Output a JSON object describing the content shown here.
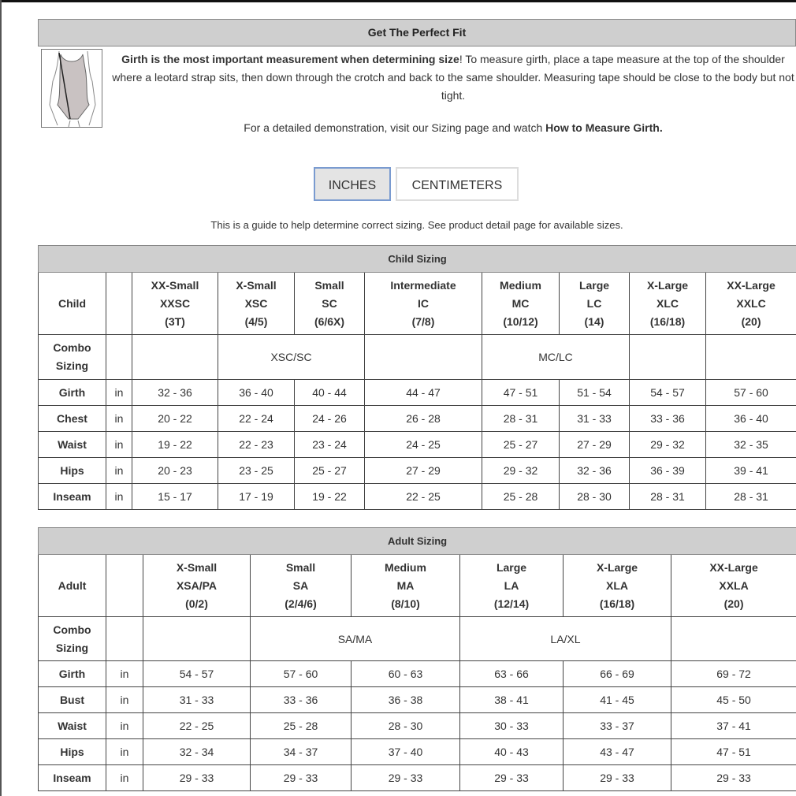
{
  "fit": {
    "title": "Get The Perfect Fit",
    "figure_icon": "leotard-girth-figure",
    "intro_bold": "Girth is the most important measurement when determining size",
    "intro_rest": "! To measure girth, place a tape measure at the top of the shoulder where a leotard strap sits, then down through the crotch and back to the same shoulder. Measuring tape should be close to the body but not tight.",
    "demo_text": "For a detailed demonstration, visit our Sizing page and watch ",
    "demo_link": "How to Measure Girth."
  },
  "units": {
    "inches": "INCHES",
    "centimeters": "CENTIMETERS",
    "selected": "inches",
    "active_border": "#7a9bd0"
  },
  "guide": "This is a guide to help determine correct sizing. See product detail page for available sizes.",
  "child": {
    "title": "Child Sizing",
    "corner": "Child",
    "sizes": [
      [
        "XX-Small",
        "XXSC",
        "(3T)"
      ],
      [
        "X-Small",
        "XSC",
        "(4/5)"
      ],
      [
        "Small",
        "SC",
        "(6/6X)"
      ],
      [
        "Intermediate",
        "IC",
        "(7/8)"
      ],
      [
        "Medium",
        "MC",
        "(10/12)"
      ],
      [
        "Large",
        "LC",
        "(14)"
      ],
      [
        "X-Large",
        "XLC",
        "(16/18)"
      ],
      [
        "XX-Large",
        "XXLC",
        "(20)"
      ]
    ],
    "combo_label": [
      "Combo",
      "Sizing"
    ],
    "combo": [
      {
        "text": "",
        "span": 1
      },
      {
        "text": "XSC/SC",
        "span": 2
      },
      {
        "text": "",
        "span": 1
      },
      {
        "text": "MC/LC",
        "span": 2
      },
      {
        "text": "",
        "span": 1
      },
      {
        "text": "",
        "span": 1
      }
    ],
    "unit": "in",
    "rows": [
      {
        "label": "Girth",
        "values": [
          "32 - 36",
          "36 - 40",
          "40 - 44",
          "44 - 47",
          "47 - 51",
          "51 - 54",
          "54 - 57",
          "57 - 60"
        ]
      },
      {
        "label": "Chest",
        "values": [
          "20 - 22",
          "22 - 24",
          "24 - 26",
          "26 - 28",
          "28 - 31",
          "31 - 33",
          "33 - 36",
          "36 - 40"
        ]
      },
      {
        "label": "Waist",
        "values": [
          "19 - 22",
          "22 - 23",
          "23 - 24",
          "24 - 25",
          "25 - 27",
          "27 - 29",
          "29 - 32",
          "32 - 35"
        ]
      },
      {
        "label": "Hips",
        "values": [
          "20 - 23",
          "23 - 25",
          "25 - 27",
          "27 - 29",
          "29 - 32",
          "32 - 36",
          "36 - 39",
          "39 - 41"
        ]
      },
      {
        "label": "Inseam",
        "values": [
          "15 - 17",
          "17 - 19",
          "19 - 22",
          "22 - 25",
          "25 - 28",
          "28 - 30",
          "28 - 31",
          "28 - 31"
        ]
      }
    ]
  },
  "adult": {
    "title": "Adult Sizing",
    "corner": "Adult",
    "sizes": [
      [
        "X-Small",
        "XSA/PA",
        "(0/2)"
      ],
      [
        "Small",
        "SA",
        "(2/4/6)"
      ],
      [
        "Medium",
        "MA",
        "(8/10)"
      ],
      [
        "Large",
        "LA",
        "(12/14)"
      ],
      [
        "X-Large",
        "XLA",
        "(16/18)"
      ],
      [
        "XX-Large",
        "XXLA",
        "(20)"
      ]
    ],
    "combo_label": [
      "Combo",
      "Sizing"
    ],
    "combo": [
      {
        "text": "",
        "span": 1
      },
      {
        "text": "SA/MA",
        "span": 2
      },
      {
        "text": "LA/XL",
        "span": 2
      },
      {
        "text": "",
        "span": 1
      }
    ],
    "unit": "in",
    "rows": [
      {
        "label": "Girth",
        "values": [
          "54 - 57",
          "57 - 60",
          "60 - 63",
          "63 - 66",
          "66 - 69",
          "69 - 72"
        ]
      },
      {
        "label": "Bust",
        "values": [
          "31 - 33",
          "33 - 36",
          "36 - 38",
          "38 - 41",
          "41 - 45",
          "45 - 50"
        ]
      },
      {
        "label": "Waist",
        "values": [
          "22 - 25",
          "25 - 28",
          "28 - 30",
          "30 - 33",
          "33 - 37",
          "37 - 41"
        ]
      },
      {
        "label": "Hips",
        "values": [
          "32 - 34",
          "34 - 37",
          "37 - 40",
          "40 - 43",
          "43 - 47",
          "47 - 51"
        ]
      },
      {
        "label": "Inseam",
        "values": [
          "29 - 33",
          "29 - 33",
          "29 - 33",
          "29 - 33",
          "29 - 33",
          "29 - 33"
        ]
      }
    ]
  }
}
